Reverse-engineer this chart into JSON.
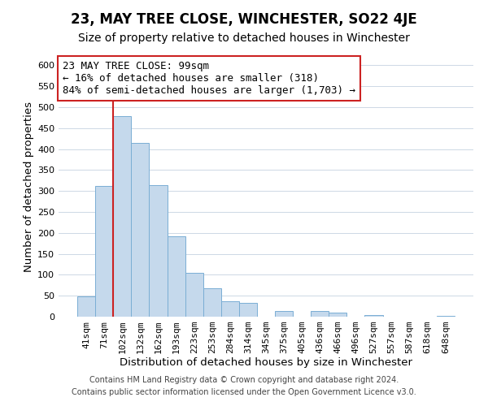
{
  "title": "23, MAY TREE CLOSE, WINCHESTER, SO22 4JE",
  "subtitle": "Size of property relative to detached houses in Winchester",
  "xlabel": "Distribution of detached houses by size in Winchester",
  "ylabel": "Number of detached properties",
  "bar_labels": [
    "41sqm",
    "71sqm",
    "102sqm",
    "132sqm",
    "162sqm",
    "193sqm",
    "223sqm",
    "253sqm",
    "284sqm",
    "314sqm",
    "345sqm",
    "375sqm",
    "405sqm",
    "436sqm",
    "466sqm",
    "496sqm",
    "527sqm",
    "557sqm",
    "587sqm",
    "618sqm",
    "648sqm"
  ],
  "bar_values": [
    48,
    311,
    478,
    415,
    314,
    191,
    105,
    68,
    37,
    32,
    0,
    14,
    0,
    14,
    9,
    0,
    3,
    0,
    0,
    0,
    2
  ],
  "bar_color": "#c5d9ec",
  "bar_edge_color": "#7aaed4",
  "highlight_color": "#cc2222",
  "highlight_bar_index": 2,
  "ylim": [
    0,
    620
  ],
  "yticks": [
    0,
    50,
    100,
    150,
    200,
    250,
    300,
    350,
    400,
    450,
    500,
    550,
    600
  ],
  "annotation_line1": "23 MAY TREE CLOSE: 99sqm",
  "annotation_line2": "← 16% of detached houses are smaller (318)",
  "annotation_line3": "84% of semi-detached houses are larger (1,703) →",
  "footer_line1": "Contains HM Land Registry data © Crown copyright and database right 2024.",
  "footer_line2": "Contains public sector information licensed under the Open Government Licence v3.0.",
  "bg_color": "#ffffff",
  "grid_color": "#cdd8e5",
  "title_fontsize": 12,
  "subtitle_fontsize": 10,
  "axis_label_fontsize": 9.5,
  "tick_fontsize": 8,
  "annotation_fontsize": 9,
  "footer_fontsize": 7
}
